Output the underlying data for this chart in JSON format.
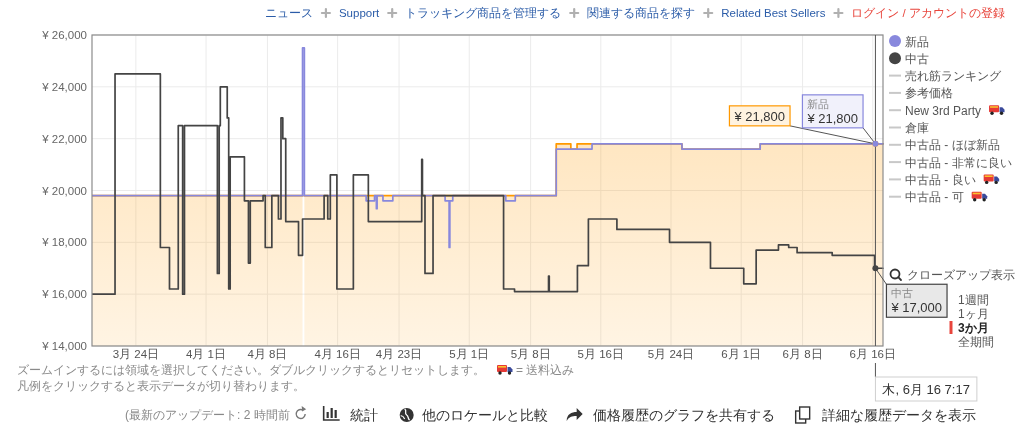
{
  "chart_data": {
    "type": "step",
    "xlim": [
      "--03-19",
      "--06-17T04:00"
    ],
    "xticks": [
      {
        "value": "--03-24",
        "label": "3月 24日"
      },
      {
        "value": "--04-01",
        "label": "4月 1日"
      },
      {
        "value": "--04-08",
        "label": "4月 8日"
      },
      {
        "value": "--04-16",
        "label": "4月 16日"
      },
      {
        "value": "--04-23",
        "label": "4月 23日"
      },
      {
        "value": "--05-01",
        "label": "5月 1日"
      },
      {
        "value": "--05-08",
        "label": "5月 8日"
      },
      {
        "value": "--05-16",
        "label": "5月 16日"
      },
      {
        "value": "--05-24",
        "label": "5月 24日"
      },
      {
        "value": "--06-01",
        "label": "6月 1日"
      },
      {
        "value": "--06-08",
        "label": "6月 8日"
      },
      {
        "value": "--06-16",
        "label": "6月 16日"
      }
    ],
    "ylim": [
      14000,
      26000
    ],
    "yticks": [
      {
        "value": 14000,
        "label": "¥ 14,000"
      },
      {
        "value": 16000,
        "label": "¥ 16,000"
      },
      {
        "value": 18000,
        "label": "¥ 18,000"
      },
      {
        "value": 20000,
        "label": "¥ 20,000"
      },
      {
        "value": 22000,
        "label": "¥ 22,000"
      },
      {
        "value": 24000,
        "label": "¥ 24,000"
      },
      {
        "value": 26000,
        "label": "¥ 26,000"
      }
    ],
    "grid": true,
    "legend": "right",
    "series": [
      {
        "type": "area",
        "color": "#ff9900",
        "x": [
          "--03-19T00:00",
          "--04-12T00:00",
          "--04-12T02:00",
          "--04-12T05:00",
          "--05-10T22:00",
          "--05-10T22:00",
          "--05-12T14:00",
          "--05-12T14:00",
          "--05-13T07:00",
          "--05-13T07:00",
          "--05-25T06:00",
          "--05-25T06:00",
          "--06-03T04:00",
          "--06-03T04:00",
          "--06-17T04:00"
        ],
        "values": [
          19800,
          19800,
          null,
          19800,
          19800,
          21800,
          21800,
          21600,
          21600,
          21800,
          21800,
          21600,
          21600,
          21800,
          21800
        ]
      },
      {
        "name": "新品",
        "color": "#8888dd",
        "x": [
          "--03-19T00:00",
          "--04-12T00:00",
          "--04-12T05:00",
          "--04-19T06:00",
          "--04-20T05:00",
          "--04-20T10:00",
          "--04-20T12:00",
          "--04-21T04:00",
          "--04-22T07:00",
          "--04-28T06:00",
          "--04-28T17:00",
          "--04-28T19:00",
          "--04-29T03:00",
          "--05-05T04:00",
          "--05-06T06:00",
          "--05-10T22:00",
          "--05-15T00:00",
          "--05-25T06:00",
          "--06-03T04:00",
          "--06-17T04:00"
        ],
        "values": [
          19800,
          25500,
          19800,
          19600,
          19800,
          19300,
          19800,
          19600,
          19800,
          19600,
          17800,
          19600,
          19800,
          19600,
          19800,
          21600,
          21800,
          21600,
          21800,
          21800
        ]
      },
      {
        "name": "中古",
        "color": "#444444",
        "x": [
          "--03-19T00:00",
          "--03-21T15:00",
          "--03-26T19:00",
          "--03-27T20:00",
          "--03-28T20:00",
          "--03-29T08:00",
          "--03-29T13:00",
          "--04-02T07:00",
          "--04-02T12:00",
          "--04-02T15:00",
          "--04-03T10:00",
          "--04-03T14:00",
          "--04-03T18:00",
          "--04-05T09:00",
          "--04-05T20:00",
          "--04-06T01:00",
          "--04-07T12:00",
          "--04-07T18:00",
          "--04-08T12:00",
          "--04-09T06:00",
          "--04-09T13:00",
          "--04-09T18:00",
          "--04-10T02:00",
          "--04-11T13:00",
          "--04-12T00:00",
          "--04-14T11:00",
          "--04-14T21:00",
          "--04-15T04:00",
          "--04-15T22:00",
          "--04-17T19:00",
          "--04-19T12:00",
          "--04-25T14:00",
          "--04-25T16:00",
          "--04-25T23:00",
          "--04-26T21:00",
          "--05-04T22:00",
          "--05-06T04:00",
          "--05-10T01:00",
          "--05-10T03:00",
          "--05-13T08:00",
          "--05-14T14:00",
          "--05-17T20:00",
          "--05-23T20:00",
          "--05-28T12:00",
          "--06-01T07:00",
          "--06-02T17:00",
          "--06-05T06:00",
          "--06-06T10:00",
          "--06-07T09:00",
          "--06-11T09:00",
          "--06-16T05:00",
          "--06-17T04:00"
        ],
        "values": [
          16000,
          24500,
          17800,
          16200,
          22500,
          16000,
          22500,
          16800,
          22500,
          24000,
          22800,
          16200,
          21300,
          19600,
          17200,
          19600,
          19800,
          17800,
          19800,
          18900,
          22800,
          22000,
          18800,
          17500,
          18900,
          19800,
          18900,
          20600,
          16200,
          20600,
          18800,
          21200,
          19800,
          16800,
          19800,
          16200,
          16100,
          16700,
          16100,
          17100,
          18900,
          18500,
          18000,
          17000,
          16400,
          17700,
          17900,
          17800,
          17600,
          17500,
          17000,
          17000
        ]
      },
      {
        "name": "売れ筋ランキング",
        "color": "#c8c8c8"
      },
      {
        "name": "参考価格",
        "color": "#c8c8c8"
      },
      {
        "name": "New 3rd Party",
        "color": "#c8c8c8"
      },
      {
        "name": "倉庫",
        "color": "#c8c8c8"
      },
      {
        "name": "中古品 - ほぼ新品",
        "color": "#c8c8c8"
      },
      {
        "name": "中古品 - 非常に良い",
        "color": "#c8c8c8"
      },
      {
        "name": "中古品 - 良い",
        "color": "#c8c8c8"
      },
      {
        "name": "中古品 - 可",
        "color": "#c8c8c8"
      }
    ],
    "ref_lines": [
      {
        "axis": "x",
        "value": "--06-16T07:17",
        "label": "木, 6月 16 7:17",
        "color": "#555555"
      }
    ],
    "annotations": [
      {
        "text": "¥ 21,800",
        "x": "--06-16T07:17",
        "y": 21800
      },
      {
        "text": "新品\n¥ 21,800",
        "x": "--06-16T07:17",
        "y": 21800
      },
      {
        "text": "中古\n¥ 17,000",
        "x": "--06-16T07:17",
        "y": 17000
      },
      "ニュース",
      "Support",
      "トラッキング商品を管理する",
      "関連する商品を探す",
      "Related Best Sellers",
      "ログイン / アカウントの登録",
      "クローズアップ表示",
      "1週間",
      "1ヶ月",
      "3か月",
      "全期間",
      "ズームインするには領域を選択してください。ダブルクリックするとリセットします。",
      "= 送料込み",
      "凡例をクリックすると表示データが切り替わります。",
      "(最新のアップデート: 2 時間前",
      "統計",
      "他のロケールと比較",
      "価格履歴のグラフを共有する",
      "詳細な履歴データを表示"
    ]
  }
}
